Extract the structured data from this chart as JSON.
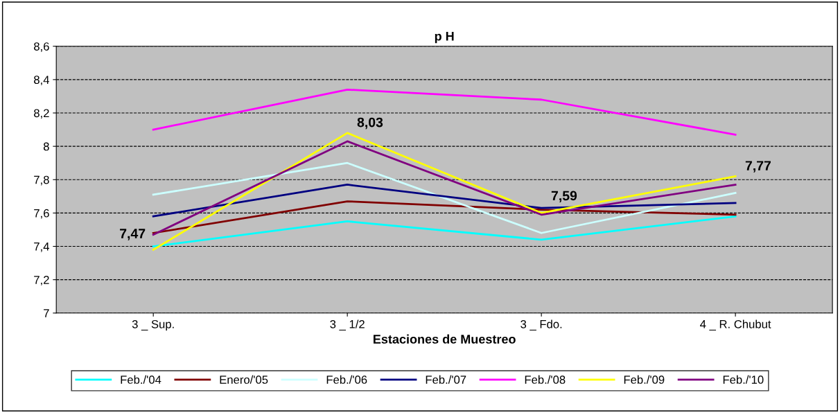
{
  "chart_data": {
    "type": "line",
    "title": "p H",
    "xlabel": "Estaciones de Muestreo",
    "categories": [
      "3 _ Sup.",
      "3 _ 1/2",
      "3 _ Fdo.",
      "4 _ R. Chubut"
    ],
    "ylim": [
      7,
      8.6
    ],
    "yticks": [
      {
        "value": 7,
        "label": "7"
      },
      {
        "value": 7.2,
        "label": "7,2"
      },
      {
        "value": 7.4,
        "label": "7,4"
      },
      {
        "value": 7.6,
        "label": "7,6"
      },
      {
        "value": 7.8,
        "label": "7,8"
      },
      {
        "value": 8,
        "label": "8"
      },
      {
        "value": 8.2,
        "label": "8,2"
      },
      {
        "value": 8.4,
        "label": "8,4"
      },
      {
        "value": 8.6,
        "label": "8,6"
      }
    ],
    "grid": "y",
    "legend": "bottom",
    "marker": "none",
    "line_style": "solid",
    "series": [
      {
        "name": "Feb./'04",
        "color": "#00ffff",
        "values": [
          7.4,
          7.55,
          7.44,
          7.58
        ]
      },
      {
        "name": "Enero/'05",
        "color": "#800000",
        "values": [
          7.48,
          7.67,
          7.62,
          7.59
        ]
      },
      {
        "name": "Feb./'06",
        "color": "#ccffff",
        "values": [
          7.71,
          7.9,
          7.48,
          7.72
        ]
      },
      {
        "name": "Feb./'07",
        "color": "#000080",
        "values": [
          7.58,
          7.77,
          7.63,
          7.66
        ]
      },
      {
        "name": "Feb./'08",
        "color": "#ff00ff",
        "values": [
          8.1,
          8.34,
          8.28,
          8.07
        ]
      },
      {
        "name": "Feb./'09",
        "color": "#ffff00",
        "values": [
          7.38,
          8.08,
          7.6,
          7.82
        ]
      },
      {
        "name": "Feb./'10",
        "color": "#800080",
        "values": [
          7.47,
          8.03,
          7.59,
          7.77
        ],
        "value_labels": [
          "7,47",
          "8,03",
          "7,59",
          "7,77"
        ]
      }
    ]
  }
}
